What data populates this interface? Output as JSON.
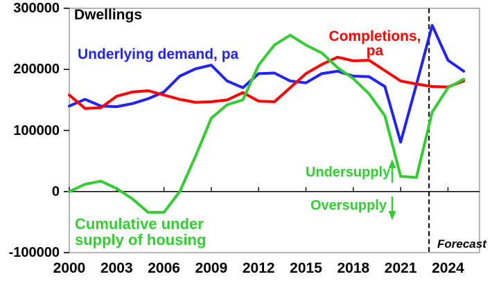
{
  "chart_data": {
    "type": "line",
    "title": "Dwellings",
    "x": [
      2000,
      2001,
      2002,
      2003,
      2004,
      2005,
      2006,
      2007,
      2008,
      2009,
      2010,
      2011,
      2012,
      2013,
      2014,
      2015,
      2016,
      2017,
      2018,
      2019,
      2020,
      2021,
      2022,
      2023,
      2024,
      2025
    ],
    "x_axis": {
      "range": [
        2000,
        2026
      ],
      "tick_labels": [
        "2000",
        "2003",
        "2006",
        "2009",
        "2012",
        "2015",
        "2018",
        "2021",
        "2024"
      ]
    },
    "y_axis": {
      "range": [
        -100000,
        300000
      ],
      "tick_values": [
        300000,
        200000,
        100000,
        0,
        -100000
      ],
      "tick_labels": [
        "300000",
        "200000",
        "100000",
        "0",
        "-100000"
      ]
    },
    "grid": false,
    "legend_position": "inline-labels",
    "series": [
      {
        "name": "Underlying demand, pa",
        "color": "#2222ff",
        "values": [
          140000,
          151000,
          140000,
          139000,
          144000,
          152000,
          163000,
          189000,
          201000,
          207000,
          181000,
          170000,
          193000,
          194000,
          181000,
          178000,
          193000,
          197000,
          189000,
          188000,
          172000,
          81000,
          175000,
          272000,
          215000,
          197000
        ]
      },
      {
        "name": "Completions, pa",
        "color": "#ff0000",
        "values": [
          158000,
          136000,
          137000,
          156000,
          163000,
          165000,
          158000,
          151000,
          146000,
          147000,
          150000,
          162000,
          148000,
          147000,
          170000,
          193000,
          208000,
          220000,
          214000,
          215000,
          198000,
          181000,
          176000,
          172000,
          171000,
          181000
        ]
      },
      {
        "name": "Cumulative under supply of housing",
        "color": "#33cc33",
        "values": [
          0,
          12000,
          17000,
          5000,
          -12000,
          -34000,
          -34000,
          0,
          58000,
          120000,
          142000,
          150000,
          207000,
          240000,
          256000,
          240000,
          227000,
          203000,
          185000,
          160000,
          124000,
          25000,
          23000,
          130000,
          170000,
          184000
        ]
      }
    ],
    "annotations": {
      "forecast_line_x": 2022.8,
      "undersupply": "Undersupply",
      "oversupply": "Oversupply",
      "forecast": "Forecast"
    }
  },
  "labels": {
    "title": "Dwellings",
    "demand": "Underlying demand, pa",
    "completions_line1": "Completions,",
    "completions_line2": "pa",
    "cumulative_line1": "Cumulative under",
    "cumulative_line2": "supply of housing",
    "undersupply": "Undersupply",
    "oversupply": "Oversupply",
    "forecast": "Forecast"
  },
  "colors": {
    "demand": "#2222ff",
    "completions": "#ff0000",
    "cumulative": "#33cc33",
    "axis": "#000000",
    "frame": "#909090"
  }
}
